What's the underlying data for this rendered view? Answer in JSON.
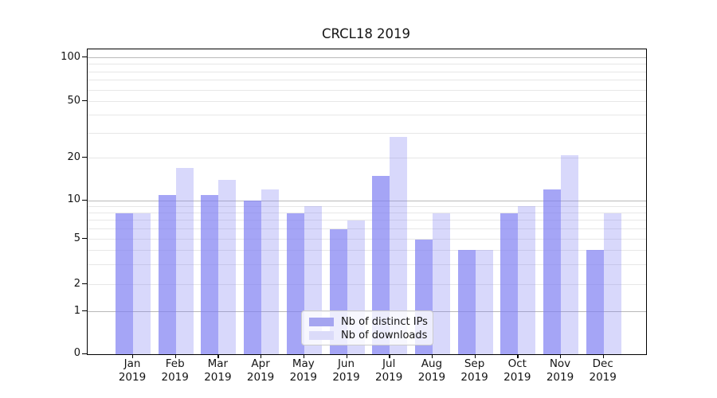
{
  "chart_data": {
    "type": "bar",
    "title": "CRCL18 2019",
    "categories": [
      "Jan",
      "Feb",
      "Mar",
      "Apr",
      "May",
      "Jun",
      "Jul",
      "Aug",
      "Sep",
      "Oct",
      "Nov",
      "Dec"
    ],
    "category_year": "2019",
    "series": [
      {
        "name": "Nb of distinct IPs",
        "color": "#a5a5f0",
        "color_base": "#7f7ff2",
        "alpha": 0.7,
        "values": [
          8,
          11,
          11,
          10,
          8,
          6,
          15,
          5,
          4,
          8,
          12,
          4
        ]
      },
      {
        "name": "Nb of downloads",
        "color": "#dbdbf9",
        "color_base": "#7f7ff2",
        "alpha": 0.3,
        "values": [
          8,
          17,
          14,
          12,
          9,
          7,
          28,
          8,
          4,
          9,
          21,
          8
        ]
      }
    ],
    "xlabel": "",
    "ylabel": "",
    "yticks": [
      0,
      1,
      2,
      5,
      10,
      20,
      50,
      100
    ],
    "ylim": [
      0,
      113
    ],
    "yscale": "log-like with linear segment 0-1",
    "grid": {
      "major_values": [
        1,
        10,
        100
      ],
      "minor_values": [
        2,
        3,
        4,
        5,
        6,
        7,
        8,
        9,
        20,
        30,
        40,
        50,
        60,
        70,
        80,
        90
      ]
    },
    "legend": {
      "entries": [
        "Nb of distinct IPs",
        "Nb of downloads"
      ],
      "position": "lower center inside plot"
    }
  }
}
